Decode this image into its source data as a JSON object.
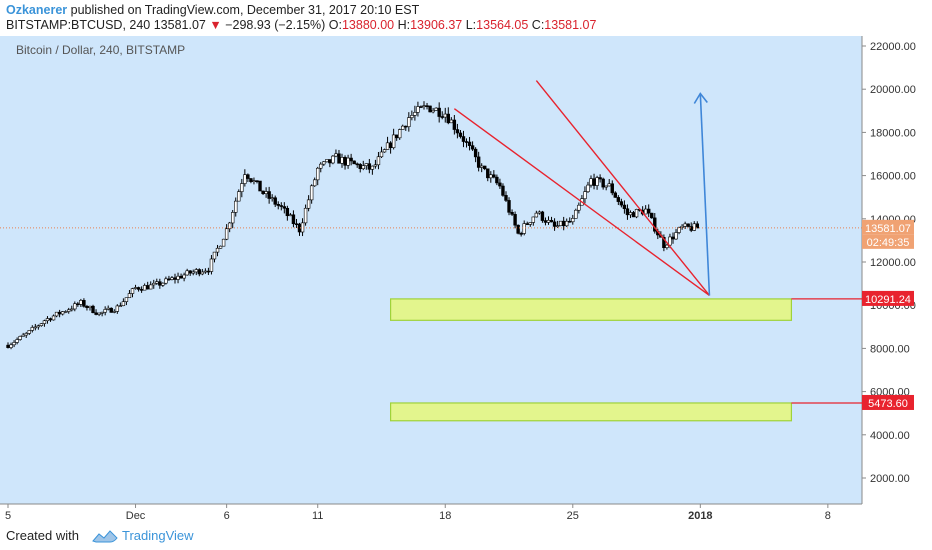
{
  "header": {
    "author": "Ozkanerer",
    "published_text": "published on TradingView.com, December 31, 2017 20:10 EST",
    "symbol_line": "BITSTAMP:BTCUSD, 240",
    "last": "13581.07",
    "change": "−298.93 (−2.15%)",
    "o_label": "O:",
    "o_value": "13880.00",
    "h_label": "H:",
    "h_value": "13906.37",
    "l_label": "L:",
    "l_value": "13564.05",
    "c_label": "C:",
    "c_value": "13581.07"
  },
  "footer": {
    "created_with": "Created with",
    "brand": "TradingView"
  },
  "colors": {
    "plot_bg": "#cfe6fb",
    "up": "#ffffff",
    "down": "#000000",
    "red": "#e8232e",
    "blue": "#3f86d8",
    "zone_fill": "#e3f58d",
    "zone_stroke": "#9fd23a",
    "price_tag": "#f0a273"
  },
  "chart_data": {
    "type": "candlestick",
    "title": "Bitcoin / Dollar, 240, BITSTAMP",
    "y_range": [
      0,
      23000
    ],
    "x_range": [
      "2017-11-24",
      "2018-01-10"
    ],
    "y_ticks": [
      "2000.00",
      "4000.00",
      "6000.00",
      "8000.00",
      "10000.00",
      "12000.00",
      "14000.00",
      "16000.00",
      "18000.00",
      "20000.00",
      "22000.00"
    ],
    "x_ticks": [
      {
        "label": "5",
        "date": "2017-11-24"
      },
      {
        "label": "Dec",
        "date": "2017-12-01"
      },
      {
        "label": "6",
        "date": "2017-12-06"
      },
      {
        "label": "11",
        "date": "2017-12-11"
      },
      {
        "label": "18",
        "date": "2017-12-18"
      },
      {
        "label": "25",
        "date": "2017-12-25"
      },
      {
        "label": "2018",
        "date": "2018-01-01"
      },
      {
        "label": "8",
        "date": "2018-01-08"
      }
    ],
    "last_price": "13581.07",
    "countdown": "02:49:35",
    "level_labels": [
      {
        "value": 10291.24,
        "text": "10291.24"
      },
      {
        "value": 5473.6,
        "text": "5473.60"
      }
    ],
    "close_path": [
      [
        "2017-11-24",
        8150
      ],
      [
        "2017-11-25",
        8650
      ],
      [
        "2017-11-26",
        9300
      ],
      [
        "2017-11-27",
        9700
      ],
      [
        "2017-11-28",
        10100
      ],
      [
        "2017-11-29",
        9600
      ],
      [
        "2017-11-30",
        9900
      ],
      [
        "2017-12-01",
        10800
      ],
      [
        "2017-12-02",
        10900
      ],
      [
        "2017-12-03",
        11200
      ],
      [
        "2017-12-04",
        11500
      ],
      [
        "2017-12-05",
        11700
      ],
      [
        "2017-12-06",
        13500
      ],
      [
        "2017-12-07",
        16200
      ],
      [
        "2017-12-08",
        15200
      ],
      [
        "2017-12-09",
        14500
      ],
      [
        "2017-12-10",
        13500
      ],
      [
        "2017-12-11",
        16300
      ],
      [
        "2017-12-12",
        16800
      ],
      [
        "2017-12-13",
        16500
      ],
      [
        "2017-12-14",
        16300
      ],
      [
        "2017-12-15",
        17500
      ],
      [
        "2017-12-16",
        18700
      ],
      [
        "2017-12-17",
        19200
      ],
      [
        "2017-12-18",
        18900
      ],
      [
        "2017-12-19",
        17700
      ],
      [
        "2017-12-20",
        16300
      ],
      [
        "2017-12-21",
        15500
      ],
      [
        "2017-12-22",
        13300
      ],
      [
        "2017-12-23",
        14300
      ],
      [
        "2017-12-24",
        13600
      ],
      [
        "2017-12-25",
        13900
      ],
      [
        "2017-12-26",
        15800
      ],
      [
        "2017-12-27",
        15500
      ],
      [
        "2017-12-28",
        14200
      ],
      [
        "2017-12-29",
        14400
      ],
      [
        "2017-12-30",
        12800
      ],
      [
        "2017-12-31",
        13581
      ]
    ],
    "trend_lines": [
      {
        "color": "red",
        "from": [
          "2017-12-18T12:00",
          19100
        ],
        "to": [
          "2018-01-01T12:00",
          10450
        ]
      },
      {
        "color": "red",
        "from": [
          "2017-12-23T00:00",
          20400
        ],
        "to": [
          "2018-01-01T12:00",
          10450
        ]
      }
    ],
    "projection_arrow": {
      "color": "blue",
      "from": [
        "2018-01-01T12:00",
        10450
      ],
      "to": [
        "2018-01-01T00:00",
        19800
      ]
    },
    "zones": [
      {
        "y_top": 10291.24,
        "y_bottom": 9300,
        "x_start": "2017-12-15",
        "x_end": "2018-01-06"
      },
      {
        "y_top": 5473.6,
        "y_bottom": 4650,
        "x_start": "2017-12-15",
        "x_end": "2018-01-06"
      }
    ],
    "level_lines": [
      10291.24,
      5473.6
    ]
  }
}
